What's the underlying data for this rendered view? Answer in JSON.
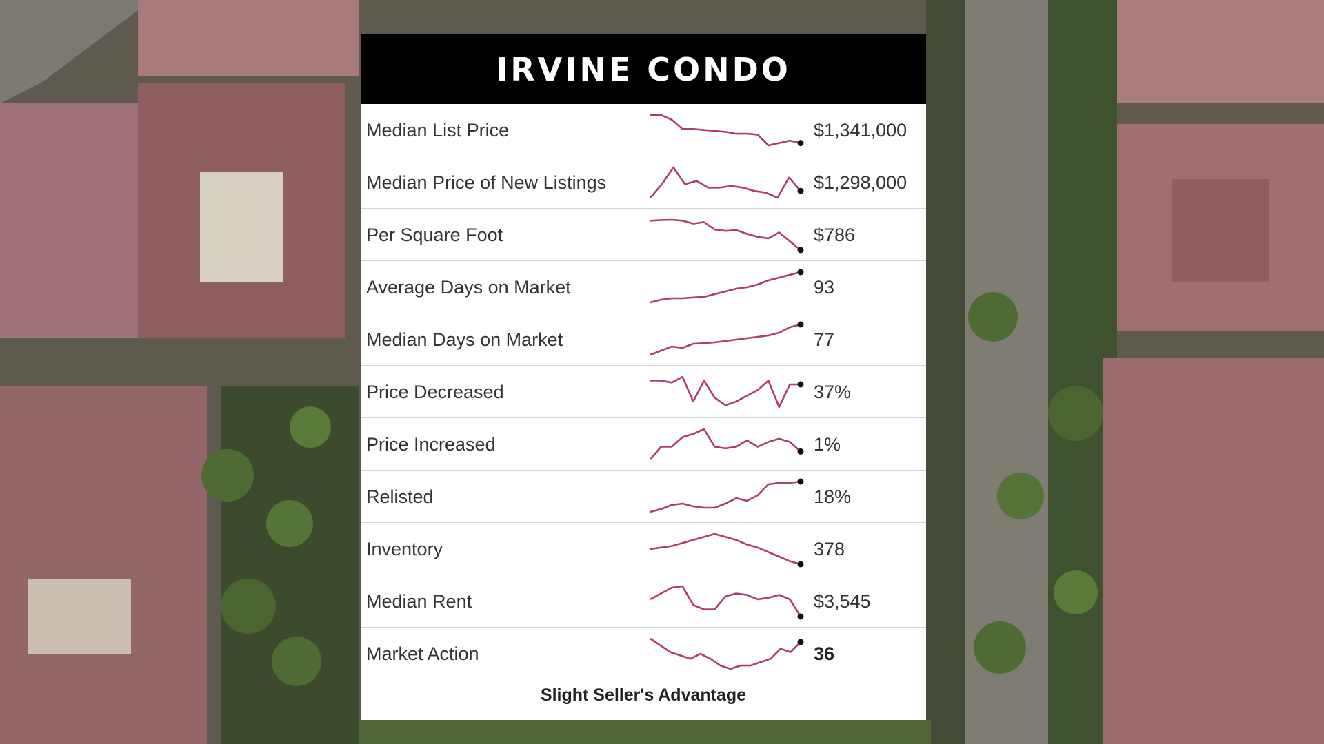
{
  "card": {
    "title": "IRVINE CONDO",
    "footer": "Slight Seller's Advantage"
  },
  "colors": {
    "header_bg": "#000000",
    "sparkline": "#b03a73",
    "end_dot": "#111111",
    "card_bg": "#ffffff"
  },
  "chart_data": {
    "type": "table",
    "columns": [
      "metric",
      "trend",
      "value"
    ],
    "rows": [
      {
        "label": "Median List Price",
        "value": "$1,341,000",
        "bold": false,
        "trend": [
          10,
          10,
          9,
          7,
          7,
          6.8,
          6.6,
          6.4,
          6,
          6,
          5.8,
          3.5,
          4,
          4.5,
          4
        ]
      },
      {
        "label": "Median Price of New Listings",
        "value": "$1,298,000",
        "bold": false,
        "trend": [
          3,
          7,
          12,
          7,
          8,
          6,
          6,
          6.5,
          6,
          5,
          4.5,
          3,
          9,
          5
        ]
      },
      {
        "label": "Per Square Foot",
        "value": "$786",
        "bold": false,
        "trend": [
          10,
          10.2,
          10.3,
          10,
          9,
          9.5,
          7,
          6.5,
          6.8,
          5.5,
          4.5,
          4,
          6,
          3,
          0
        ]
      },
      {
        "label": "Average Days on Market",
        "value": "93",
        "bold": false,
        "trend": [
          1,
          2,
          2.5,
          2.5,
          2.8,
          3,
          4,
          5,
          6,
          6.5,
          7.5,
          9,
          10,
          11,
          12
        ]
      },
      {
        "label": "Median Days on Market",
        "value": "77",
        "bold": false,
        "trend": [
          1,
          2.5,
          4,
          3.5,
          5,
          5.2,
          5.5,
          6,
          6.5,
          7,
          7.5,
          8,
          9,
          11,
          12
        ]
      },
      {
        "label": "Price Decreased",
        "value": "37%",
        "bold": false,
        "trend": [
          8.5,
          8.5,
          8,
          9.5,
          3,
          8.5,
          4,
          2,
          3,
          4.5,
          6,
          8.5,
          1.5,
          7.5,
          7.5
        ]
      },
      {
        "label": "Price Increased",
        "value": "1%",
        "bold": false,
        "trend": [
          0,
          4,
          4,
          7,
          8,
          9.5,
          4,
          3.5,
          4,
          6,
          4,
          5.5,
          6.5,
          5.5,
          2.5
        ]
      },
      {
        "label": "Relisted",
        "value": "18%",
        "bold": false,
        "trend": [
          1,
          2,
          3.5,
          4,
          3,
          2.5,
          2.5,
          4,
          6,
          5,
          7,
          11,
          11.5,
          11.5,
          12
        ]
      },
      {
        "label": "Inventory",
        "value": "378",
        "bold": false,
        "trend": [
          6,
          6.5,
          7,
          8,
          9,
          10,
          11,
          10,
          9,
          7.5,
          6.5,
          5,
          3.5,
          2,
          1
        ]
      },
      {
        "label": "Median Rent",
        "value": "$3,545",
        "bold": false,
        "trend": [
          10,
          12,
          14,
          14.5,
          8,
          6.5,
          6.5,
          11,
          12,
          11.5,
          10,
          10.5,
          11.5,
          10,
          4
        ]
      },
      {
        "label": "Market Action",
        "value": "36",
        "bold": true,
        "trend": [
          12,
          10,
          8,
          7,
          6,
          7.5,
          6,
          4,
          3,
          4,
          4,
          5,
          6,
          9,
          8,
          11
        ]
      }
    ]
  }
}
